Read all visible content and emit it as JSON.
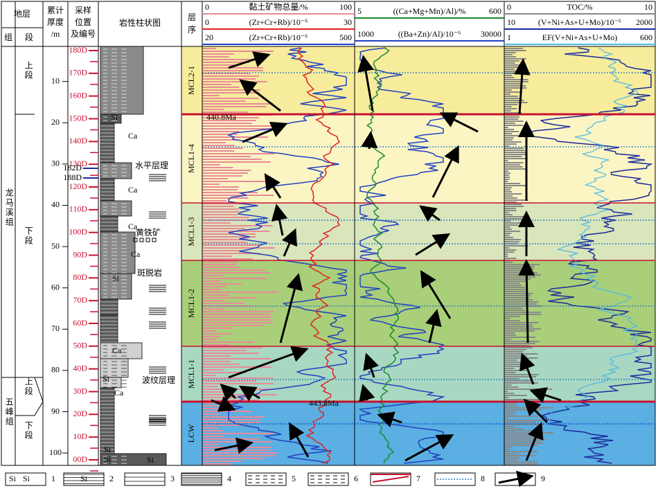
{
  "header": {
    "strata": "地层",
    "formation": "组",
    "member": "段",
    "thickness": [
      "累计",
      "厚度",
      "/m"
    ],
    "samples": [
      "采样",
      "位置",
      "及编号"
    ],
    "lithology": "岩性柱状图",
    "sequence": [
      "层",
      "序"
    ]
  },
  "formations": [
    "龙马溪组",
    "五峰组"
  ],
  "members": [
    "上段",
    "下段",
    "上段",
    "下段"
  ],
  "thickness_axis": {
    "ylim": [
      1.5,
      103
    ],
    "ticks": [
      10,
      20,
      30,
      40,
      50,
      60,
      70,
      80,
      90,
      100
    ]
  },
  "samples": {
    "labels": [
      "180D",
      "170D",
      "160D",
      "150D",
      "140D",
      "130D",
      "120D",
      "110D",
      "100D",
      "90D",
      "80D",
      "70D",
      "60D",
      "50D",
      "40D",
      "30D",
      "20D",
      "10D",
      "00D"
    ],
    "extra": [
      "182D",
      "188D"
    ]
  },
  "lithology_labels": [
    "Si",
    "Ca",
    "Ca",
    "水平层理",
    "Ca",
    "黄铁矿",
    "Ca",
    "斑脱岩",
    "Si",
    "Ca",
    "Si",
    "波纹层理",
    "Ca",
    "Si",
    "Si",
    "Si",
    "Si"
  ],
  "sequences": [
    "MCL2-1",
    "MCL1-4",
    "MCL1-3",
    "MCL1-2",
    "MCL1-1",
    "LCW"
  ],
  "ages": [
    "440.8Ma",
    "443.8Ma"
  ],
  "panels": [
    [
      {
        "min": 0,
        "name": "黏土矿物总量/%",
        "max": 100,
        "color": "#e98a98"
      },
      {
        "min": 0,
        "name": "(Zr+Cr+Rb)/10⁻⁶",
        "max": 30,
        "color": "#e02020"
      },
      {
        "min": 20,
        "name": "(Zr+Cr+Rb)/10⁻⁶",
        "max": 500,
        "color": "#2040c0"
      }
    ],
    [
      {
        "min": 5,
        "name": "((Ca+Mg+Mn)/Al)/%",
        "max": 600,
        "color": "#1a8a2a"
      },
      {
        "min": 1000,
        "name": "((Ba+Zn)/Al)/10⁻⁶",
        "max": 30000,
        "color": "#2040c0"
      }
    ],
    [
      {
        "min": 0,
        "name": "TOC/%",
        "max": 10,
        "color": "#888888"
      },
      {
        "min": 10,
        "name": "(V+Ni+As+U+Mo)/10⁻⁶",
        "max": 2000,
        "color": "#1a2a9a"
      },
      {
        "min": 1,
        "name": "EF(V+Ni+As+U+Mo)",
        "max": 600,
        "color": "#50b8e0"
      }
    ]
  ],
  "legend": [
    "1",
    "2",
    "3",
    "4",
    "5",
    "6",
    "7",
    "8",
    "9"
  ],
  "legend_si": [
    "Si",
    "Si",
    "Si"
  ]
}
